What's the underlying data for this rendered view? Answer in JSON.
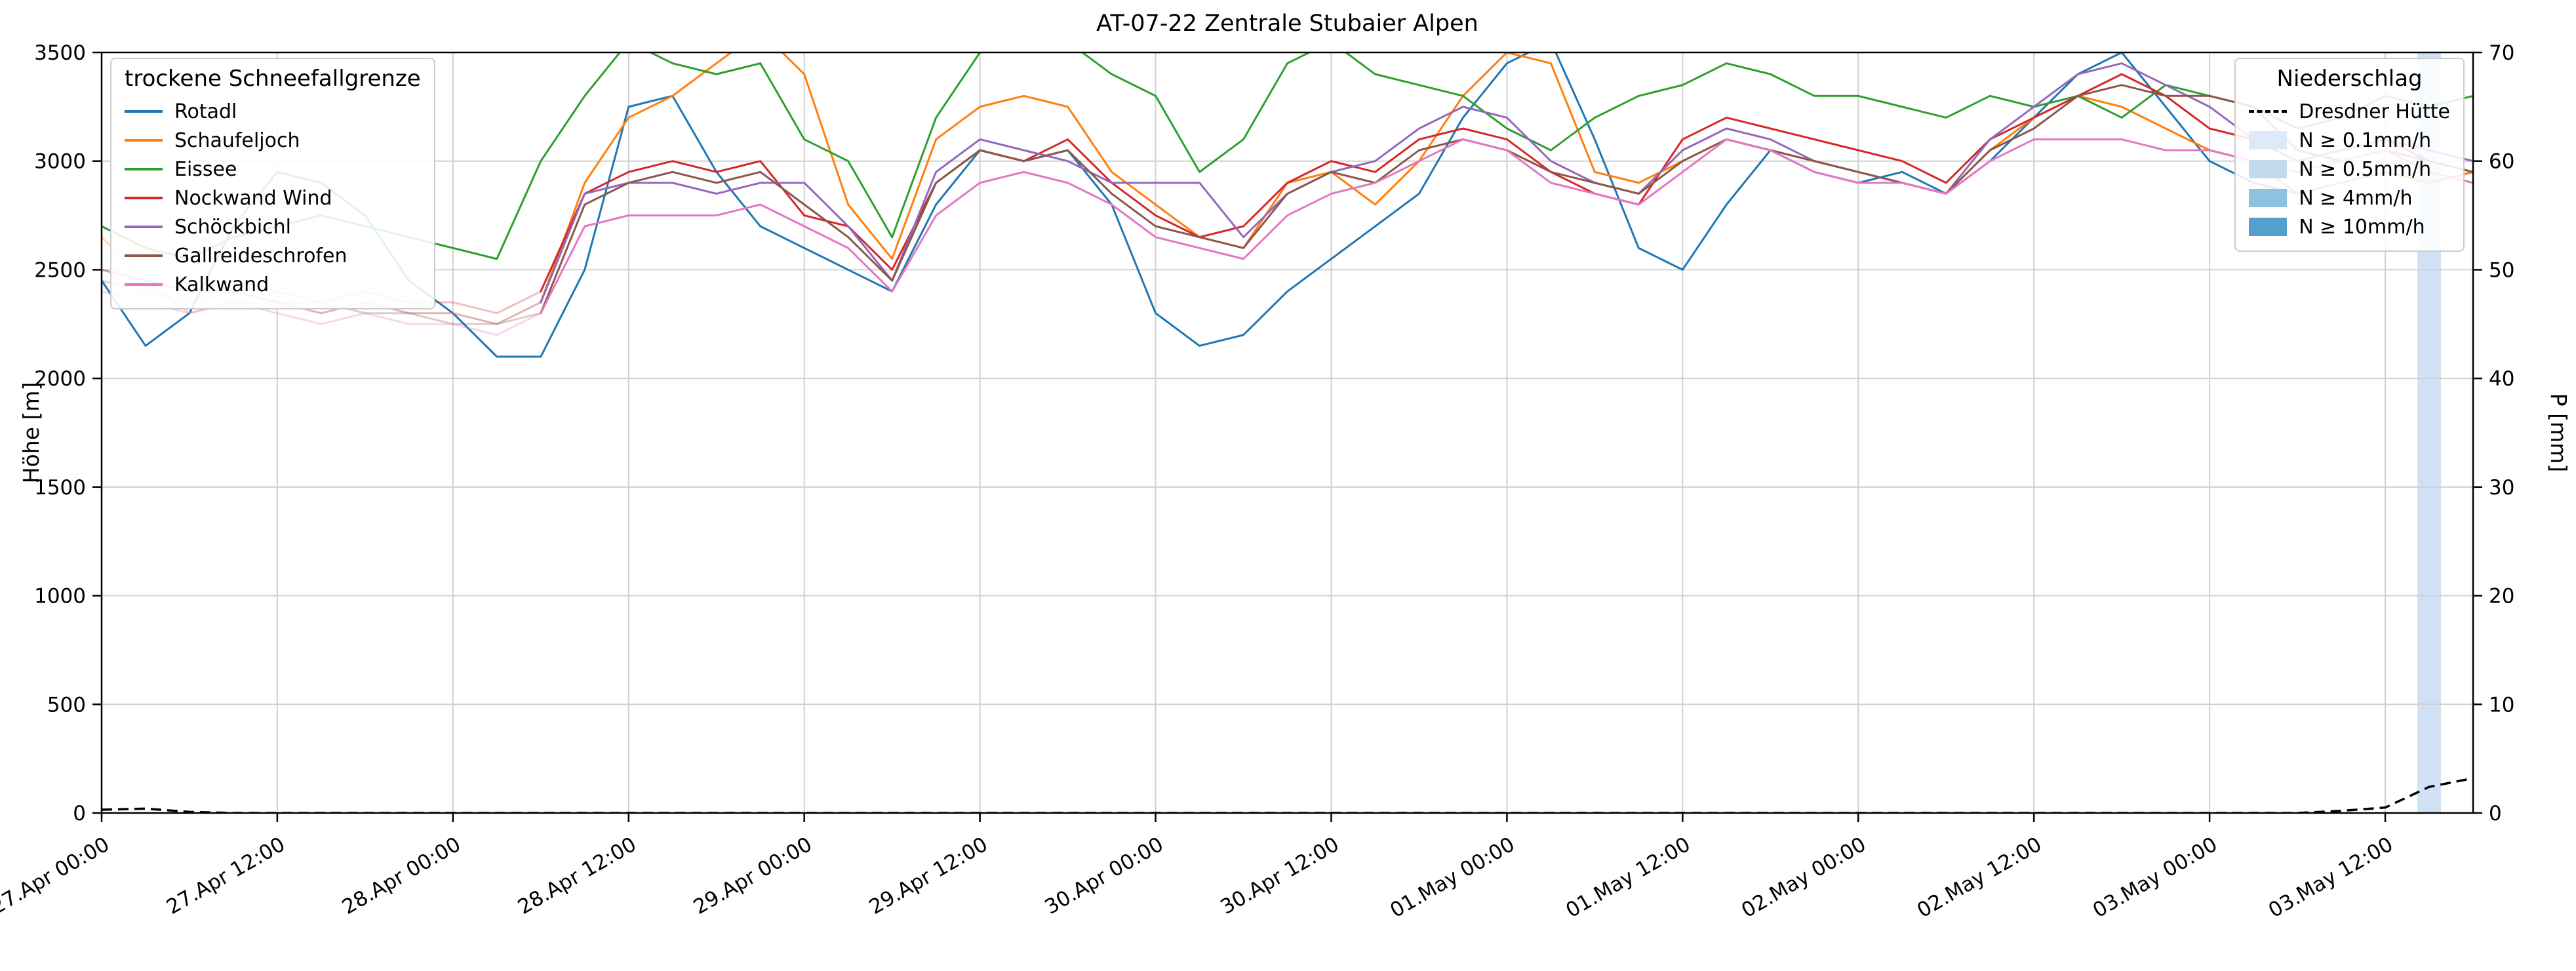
{
  "chart_data": {
    "type": "line",
    "title": "AT-07-22 Zentrale Stubaier Alpen",
    "ylabel_left": "Höhe [m]",
    "ylabel_right": "P [mm]",
    "ylim_left": [
      0,
      3500
    ],
    "ylim_right": [
      0,
      70
    ],
    "y_ticks_left": [
      0,
      500,
      1000,
      1500,
      2000,
      2500,
      3000,
      3500
    ],
    "y_ticks_right": [
      0,
      10,
      20,
      30,
      40,
      50,
      60,
      70
    ],
    "x_end_h": 162,
    "time_step_h": 3,
    "grid": true,
    "x_tick_hours": [
      0,
      12,
      24,
      36,
      48,
      60,
      72,
      84,
      96,
      108,
      120,
      132,
      144,
      156
    ],
    "x_tick_labels": [
      "27.Apr 00:00",
      "27.Apr 12:00",
      "28.Apr 00:00",
      "28.Apr 12:00",
      "29.Apr 00:00",
      "29.Apr 12:00",
      "30.Apr 00:00",
      "30.Apr 12:00",
      "01.May 00:00",
      "01.May 12:00",
      "02.May 00:00",
      "02.May 12:00",
      "03.May 00:00",
      "03.May 12:00"
    ],
    "series": [
      {
        "name": "Rotadl",
        "color": "#1f77b4",
        "fade_until_h": 0,
        "values": [
          2450,
          2150,
          2300,
          2700,
          2950,
          2900,
          2750,
          2450,
          2300,
          2100,
          2100,
          2500,
          3250,
          3300,
          2950,
          2700,
          2600,
          2500,
          2400,
          2800,
          3050,
          3000,
          3050,
          2800,
          2300,
          2150,
          2200,
          2400,
          2550,
          2700,
          2850,
          3200,
          3450,
          3550,
          3100,
          2600,
          2500,
          2800,
          3050,
          2950,
          2900,
          2950,
          2850,
          3000,
          3200,
          3400,
          3500,
          3250,
          3000,
          2900,
          2850,
          2900,
          2950,
          2900,
          2950
        ]
      },
      {
        "name": "Schaufeljoch",
        "color": "#ff7f0e",
        "fade_until_h": 30,
        "values": [
          2650,
          2450,
          2300,
          2350,
          2350,
          2300,
          2350,
          2300,
          2300,
          2250,
          2350,
          2900,
          3200,
          3300,
          3450,
          3600,
          3400,
          2800,
          2550,
          3100,
          3250,
          3300,
          3250,
          2950,
          2800,
          2650,
          2600,
          2900,
          2950,
          2800,
          3000,
          3300,
          3500,
          3450,
          2950,
          2900,
          3000,
          3100,
          3050,
          3000,
          2950,
          2900,
          2850,
          3050,
          3200,
          3300,
          3250,
          3150,
          3050,
          3000,
          2850,
          2900,
          2950,
          2900,
          2950
        ]
      },
      {
        "name": "Eissee",
        "color": "#2ca02c",
        "fade_until_h": 0,
        "values": [
          2700,
          2600,
          2550,
          2650,
          2700,
          2750,
          2700,
          2650,
          2600,
          2550,
          3000,
          3300,
          3550,
          3450,
          3400,
          3450,
          3100,
          3000,
          2650,
          3200,
          3500,
          3600,
          3550,
          3400,
          3300,
          2950,
          3100,
          3450,
          3550,
          3400,
          3350,
          3300,
          3150,
          3050,
          3200,
          3300,
          3350,
          3450,
          3400,
          3300,
          3300,
          3250,
          3200,
          3300,
          3250,
          3300,
          3200,
          3350,
          3300,
          3250,
          3150,
          3200,
          3300,
          3250,
          3300
        ]
      },
      {
        "name": "Nockwand Wind",
        "color": "#d62728",
        "fade_until_h": 30,
        "values": [
          2500,
          2450,
          2400,
          2450,
          2400,
          2350,
          2400,
          2350,
          2350,
          2300,
          2400,
          2850,
          2950,
          3000,
          2950,
          3000,
          2750,
          2700,
          2500,
          2900,
          3050,
          3000,
          3100,
          2900,
          2750,
          2650,
          2700,
          2900,
          3000,
          2950,
          3100,
          3150,
          3100,
          2950,
          2850,
          2800,
          3100,
          3200,
          3150,
          3100,
          3050,
          3000,
          2900,
          3100,
          3200,
          3300,
          3400,
          3300,
          3150,
          3100,
          3000,
          3050,
          3100,
          3000,
          2950
        ]
      },
      {
        "name": "Schöckbichl",
        "color": "#9467bd",
        "fade_until_h": 30,
        "values": [
          2450,
          2400,
          2350,
          2400,
          2350,
          2300,
          2350,
          2300,
          2300,
          2250,
          2350,
          2850,
          2900,
          2900,
          2850,
          2900,
          2900,
          2700,
          2450,
          2950,
          3100,
          3050,
          3000,
          2900,
          2900,
          2900,
          2650,
          2850,
          2950,
          3000,
          3150,
          3250,
          3200,
          3000,
          2900,
          2850,
          3050,
          3150,
          3100,
          3000,
          2950,
          2900,
          2850,
          3100,
          3250,
          3400,
          3450,
          3350,
          3250,
          3100,
          3000,
          3050,
          3100,
          3050,
          3000
        ]
      },
      {
        "name": "Gallreideschrofen",
        "color": "#8c564b",
        "fade_until_h": 30,
        "values": [
          2500,
          2450,
          2400,
          2400,
          2350,
          2350,
          2300,
          2300,
          2250,
          2250,
          2300,
          2800,
          2900,
          2950,
          2900,
          2950,
          2800,
          2650,
          2450,
          2900,
          3050,
          3000,
          3050,
          2850,
          2700,
          2650,
          2600,
          2850,
          2950,
          2900,
          3050,
          3100,
          3050,
          2950,
          2900,
          2850,
          3000,
          3100,
          3050,
          3000,
          2950,
          2900,
          2850,
          3050,
          3150,
          3300,
          3350,
          3300,
          3300,
          3250,
          3050,
          3000,
          3050,
          3000,
          2950
        ]
      },
      {
        "name": "Kalkwand",
        "color": "#e377c2",
        "fade_until_h": 30,
        "values": [
          2400,
          2350,
          2300,
          2350,
          2300,
          2250,
          2300,
          2250,
          2250,
          2200,
          2300,
          2700,
          2750,
          2750,
          2750,
          2800,
          2700,
          2600,
          2400,
          2750,
          2900,
          2950,
          2900,
          2800,
          2650,
          2600,
          2550,
          2750,
          2850,
          2900,
          3000,
          3100,
          3050,
          2900,
          2850,
          2800,
          2950,
          3100,
          3050,
          2950,
          2900,
          2900,
          2850,
          3000,
          3100,
          3100,
          3100,
          3050,
          3050,
          3000,
          2950,
          3000,
          3050,
          2950,
          2900
        ]
      }
    ],
    "precip_line": {
      "name": "Dresdner Hütte",
      "color": "#000000",
      "style": "dashed",
      "axis": "right",
      "values": [
        0.3,
        0.4,
        0.1,
        0,
        0,
        0,
        0,
        0,
        0,
        0,
        0,
        0,
        0,
        0,
        0,
        0,
        0,
        0,
        0,
        0,
        0,
        0,
        0,
        0,
        0,
        0,
        0,
        0,
        0,
        0,
        0,
        0,
        0,
        0,
        0,
        0,
        0,
        0,
        0,
        0,
        0,
        0,
        0,
        0,
        0,
        0,
        0,
        0,
        0,
        0,
        0,
        0.2,
        0.5,
        2.4,
        3.2
      ]
    },
    "precip_bands": [
      {
        "start_h": 158.2,
        "end_h": 159.8,
        "class": "N ≥ 0.5mm/h",
        "color": "#cfe1f2"
      }
    ]
  },
  "legend_sfg": {
    "title": "trockene Schneefallgrenze"
  },
  "legend_precip": {
    "title": "Niederschlag",
    "line_entry": "Dresdner Hütte",
    "classes": [
      {
        "label": "N ≥ 0.1mm/h",
        "color": "#dcebf7"
      },
      {
        "label": "N ≥ 0.5mm/h",
        "color": "#c3d9ee"
      },
      {
        "label": "N ≥ 4mm/h",
        "color": "#8fc2de"
      },
      {
        "label": "N ≥ 10mm/h",
        "color": "#549fcd"
      }
    ]
  }
}
